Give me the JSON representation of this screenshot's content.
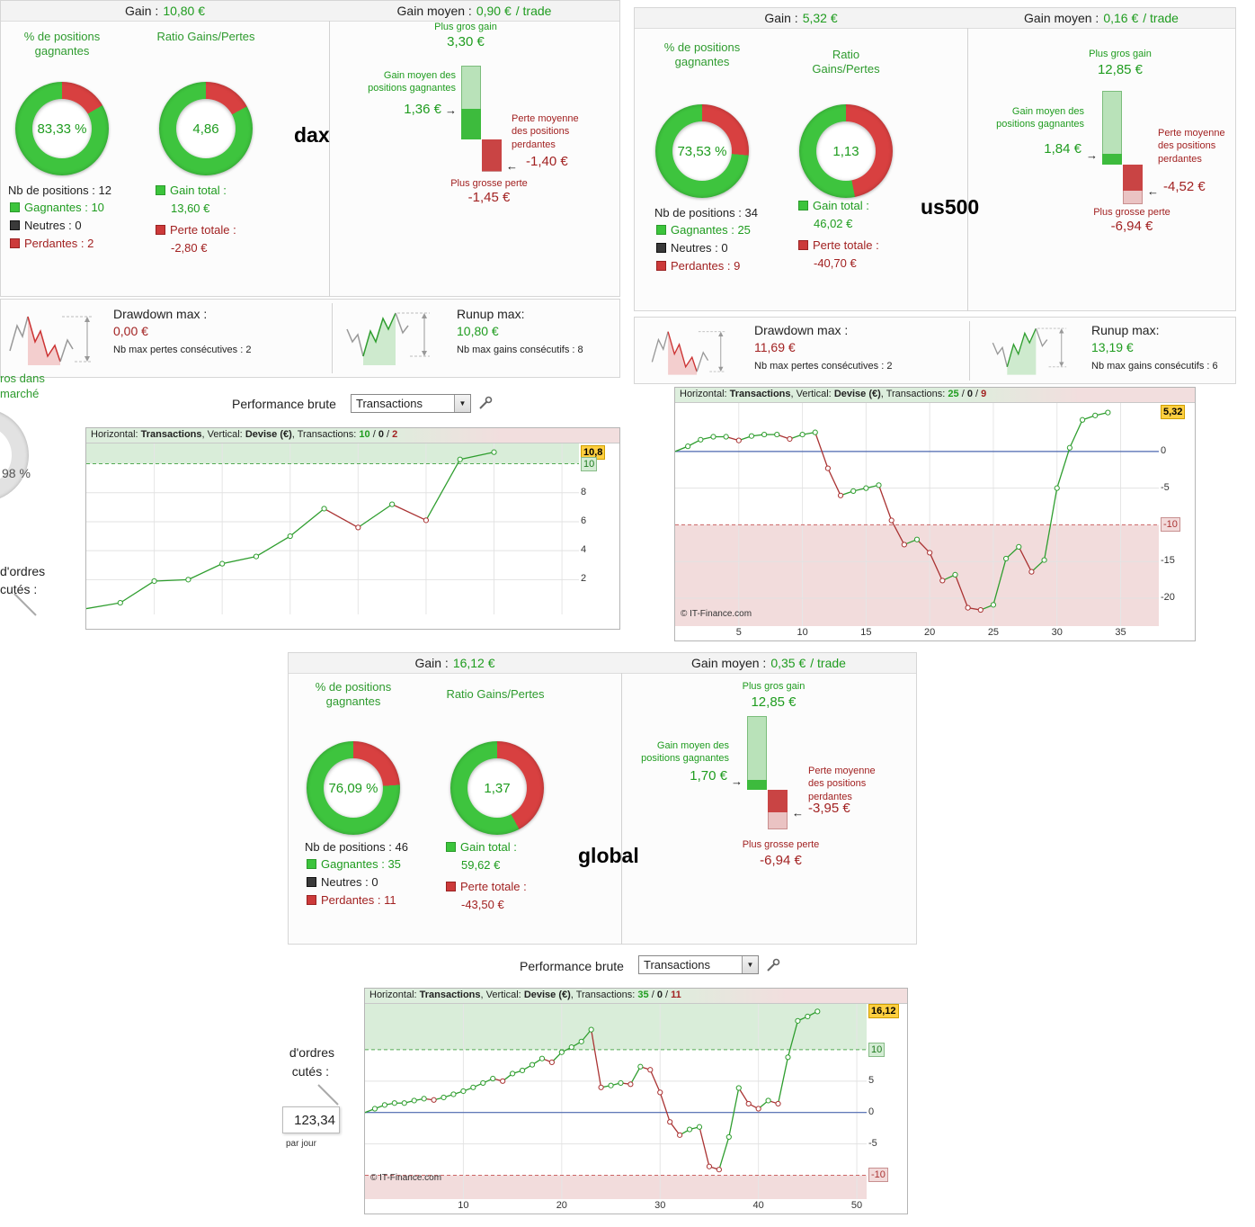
{
  "labels": {
    "gain": "Gain :",
    "gain_moyen": "Gain moyen :",
    "per_trade": "/ trade",
    "pct_title": "% de positions gagnantes",
    "ratio_title": "Ratio Gains/Pertes",
    "nb_positions": "Nb de positions :",
    "gagnantes": "Gagnantes :",
    "neutres": "Neutres :",
    "perdantes": "Perdantes :",
    "gain_total": "Gain total :",
    "perte_totale": "Perte totale :",
    "plus_gros_gain": "Plus gros gain",
    "gain_moyen_gagnantes": "Gain moyen des positions gagnantes",
    "perte_moyenne_perdantes": "Perte moyenne des positions perdantes",
    "plus_grosse_perte": "Plus grosse perte",
    "drawdown_max": "Drawdown max :",
    "runup_max": "Runup max:",
    "nb_max_pertes": "Nb max pertes consécutives :",
    "nb_max_gains": "Nb max gains consécutifs :",
    "performance_brute": "Performance brute",
    "transactions": "Transactions",
    "slash": "/"
  },
  "icons": {
    "arrow_right": "→",
    "arrow_left": "←",
    "dropdown_arrow": "▼"
  },
  "colors": {
    "green_text": "#1f9c1f",
    "red_text": "#a22222",
    "donut_green": "#3ec43e",
    "donut_red": "#d84040",
    "line_green": "#2f9e2f",
    "line_red": "#aa3333",
    "zone_green": "#d9edd9",
    "zone_pink": "#f2dcdc",
    "zero_blue": "#4d68b0",
    "badge_yellow": "#ffcf40"
  },
  "panels": {
    "dax": {
      "market_label": "dax",
      "gain_value": "10,80 €",
      "gain_moyen_value": "0,90 €",
      "win_donut": {
        "label": "83,33 %",
        "green_pct": 83.33
      },
      "ratio_donut": {
        "label": "4,86",
        "green_pct": 82.9
      },
      "nb_positions": "12",
      "gagnantes": "10",
      "neutres": "0",
      "perdantes": "2",
      "gain_total": "13,60 €",
      "perte_totale": "-2,80 €",
      "plus_gros_gain": "3,30 €",
      "gain_moyen_gagnantes": "1,36 €",
      "perte_moyenne_perdantes": "-1,40 €",
      "plus_grosse_perte": "-1,45 €",
      "bar": {
        "max_gain": 3.3,
        "avg_gain": 1.36,
        "avg_loss": 1.4,
        "max_loss": 1.45
      },
      "drawdown_max": "0,00 €",
      "nb_max_pertes": "2",
      "runup_max": "10,80 €",
      "nb_max_gains": "8"
    },
    "us500": {
      "market_label": "us500",
      "gain_value": "5,32 €",
      "gain_moyen_value": "0,16 €",
      "win_donut": {
        "label": "73,53 %",
        "green_pct": 73.53
      },
      "ratio_donut": {
        "label": "1,13",
        "green_pct": 53.1
      },
      "nb_positions": "34",
      "gagnantes": "25",
      "neutres": "0",
      "perdantes": "9",
      "gain_total": "46,02 €",
      "perte_totale": "-40,70 €",
      "plus_gros_gain": "12,85 €",
      "gain_moyen_gagnantes": "1,84 €",
      "perte_moyenne_perdantes": "-4,52 €",
      "plus_grosse_perte": "-6,94 €",
      "bar": {
        "max_gain": 12.85,
        "avg_gain": 1.84,
        "avg_loss": 4.52,
        "max_loss": 6.94
      },
      "drawdown_max": "11,69 €",
      "nb_max_pertes": "2",
      "runup_max": "13,19 €",
      "nb_max_gains": "6"
    },
    "global": {
      "market_label": "global",
      "gain_value": "16,12 €",
      "gain_moyen_value": "0,35 €",
      "win_donut": {
        "label": "76,09 %",
        "green_pct": 76.09
      },
      "ratio_donut": {
        "label": "1,37",
        "green_pct": 57.8
      },
      "nb_positions": "46",
      "gagnantes": "35",
      "neutres": "0",
      "perdantes": "11",
      "gain_total": "59,62 €",
      "perte_totale": "-43,50 €",
      "plus_gros_gain": "12,85 €",
      "gain_moyen_gagnantes": "1,70 €",
      "perte_moyenne_perdantes": "-3,95 €",
      "plus_grosse_perte": "-6,94 €",
      "bar": {
        "max_gain": 12.85,
        "avg_gain": 1.7,
        "avg_loss": 3.95,
        "max_loss": 6.94
      }
    }
  },
  "cut": {
    "dax_left": {
      "line1": "ros dans",
      "line2": "marché",
      "pct": "98 %",
      "orders1": "d'ordres",
      "orders2": "cutés :"
    },
    "global_left": {
      "orders1": "d'ordres",
      "orders2": "cutés :",
      "value": "123,34",
      "per_day": "par jour"
    }
  },
  "chart_data": [
    {
      "type": "line",
      "market": "dax",
      "xlabel": "Transactions",
      "ylabel": "Devise (€)",
      "header": {
        "h_label": "Horizontal:",
        "h_value": "Transactions",
        "v_label": ", Vertical:",
        "v_value": "Devise (€)",
        "t_label": ", Transactions:",
        "wins": "10",
        "neutres": "0",
        "losses": "2"
      },
      "start": 0,
      "values": [
        0.4,
        1.9,
        2.0,
        3.1,
        3.6,
        5.0,
        6.9,
        5.6,
        7.2,
        6.1,
        10.3,
        10.8
      ],
      "ylim": [
        -0.4,
        11.4
      ],
      "xmax": 14.5,
      "ygrid": [
        2,
        4,
        6,
        8
      ],
      "xgrid": [
        2,
        4,
        6,
        8,
        10,
        12,
        14
      ],
      "ylabels": [
        {
          "v": 10.8,
          "text": "10,8",
          "badge": "yellow"
        },
        {
          "v": 10,
          "text": "10",
          "badge": "green"
        },
        {
          "v": 8,
          "text": "8"
        },
        {
          "v": 6,
          "text": "6"
        },
        {
          "v": 4,
          "text": "4"
        },
        {
          "v": 2,
          "text": "2"
        }
      ],
      "xticks": [],
      "green_zone_above": 10,
      "red_zone_below": null,
      "zero_line": false
    },
    {
      "type": "line",
      "market": "us500",
      "xlabel": "Transactions",
      "ylabel": "Devise (€)",
      "header": {
        "h_label": "Horizontal:",
        "h_value": "Transactions",
        "v_label": ", Vertical:",
        "v_value": "Devise (€)",
        "t_label": ", Transactions:",
        "wins": "25",
        "neutres": "0",
        "losses": "9"
      },
      "start": 0,
      "values": [
        0.7,
        1.6,
        2.0,
        2.0,
        1.5,
        2.1,
        2.3,
        2.3,
        1.7,
        2.3,
        2.6,
        -2.3,
        -6.0,
        -5.4,
        -5.0,
        -4.6,
        -9.4,
        -12.7,
        -12.0,
        -13.8,
        -17.6,
        -16.8,
        -21.3,
        -21.6,
        -20.9,
        -14.6,
        -13.0,
        -16.4,
        -14.8,
        -5.0,
        0.5,
        4.3,
        4.9,
        5.3
      ],
      "ylim": [
        -23.8,
        6.6
      ],
      "xmax": 38,
      "ygrid": [
        0,
        -5,
        -15,
        -20
      ],
      "xgrid": [
        5,
        10,
        15,
        20,
        25,
        30,
        35
      ],
      "ylabels": [
        {
          "v": 5.32,
          "text": "5,32",
          "badge": "yellow"
        },
        {
          "v": 0,
          "text": "0"
        },
        {
          "v": -5,
          "text": "-5"
        },
        {
          "v": -10,
          "text": "-10",
          "badge": "pink"
        },
        {
          "v": -15,
          "text": "-15"
        },
        {
          "v": -20,
          "text": "-20"
        }
      ],
      "xticks": [
        {
          "v": 5,
          "text": "5"
        },
        {
          "v": 10,
          "text": "10"
        },
        {
          "v": 15,
          "text": "15"
        },
        {
          "v": 20,
          "text": "20"
        },
        {
          "v": 25,
          "text": "25"
        },
        {
          "v": 30,
          "text": "30"
        },
        {
          "v": 35,
          "text": "35"
        }
      ],
      "green_zone_above": null,
      "red_zone_below": -10,
      "zero_line": true,
      "copyright": "© IT-Finance.com"
    },
    {
      "type": "line",
      "market": "global",
      "xlabel": "Transactions",
      "ylabel": "Devise (€)",
      "header": {
        "h_label": "Horizontal:",
        "h_value": "Transactions",
        "v_label": ", Vertical:",
        "v_value": "Devise (€)",
        "t_label": ", Transactions:",
        "wins": "35",
        "neutres": "0",
        "losses": "11"
      },
      "start": 0,
      "values": [
        0.6,
        1.2,
        1.5,
        1.5,
        1.9,
        2.2,
        2.0,
        2.4,
        2.9,
        3.4,
        4.0,
        4.7,
        5.4,
        5.0,
        6.2,
        6.7,
        7.6,
        8.6,
        8.0,
        9.6,
        10.4,
        11.3,
        13.2,
        4.0,
        4.3,
        4.7,
        4.5,
        7.3,
        6.8,
        3.2,
        -1.5,
        -3.6,
        -2.7,
        -2.3,
        -8.6,
        -9.1,
        -3.9,
        3.9,
        1.4,
        0.6,
        1.9,
        1.4,
        8.8,
        14.6,
        15.3,
        16.1
      ],
      "ylim": [
        -13.8,
        17.3
      ],
      "xmax": 51,
      "ygrid": [
        5,
        0,
        -5
      ],
      "xgrid": [
        10,
        20,
        30,
        40,
        50
      ],
      "ylabels": [
        {
          "v": 16.12,
          "text": "16,12",
          "badge": "yellow"
        },
        {
          "v": 10,
          "text": "10",
          "badge": "green"
        },
        {
          "v": 5,
          "text": "5"
        },
        {
          "v": 0,
          "text": "0"
        },
        {
          "v": -5,
          "text": "-5"
        },
        {
          "v": -10,
          "text": "-10",
          "badge": "pink"
        }
      ],
      "xticks": [
        {
          "v": 10,
          "text": "10"
        },
        {
          "v": 20,
          "text": "20"
        },
        {
          "v": 30,
          "text": "30"
        },
        {
          "v": 40,
          "text": "40"
        },
        {
          "v": 50,
          "text": "50"
        }
      ],
      "green_zone_above": 10,
      "red_zone_below": -10,
      "zero_line": true,
      "copyright": "© IT-Finance.com"
    }
  ]
}
